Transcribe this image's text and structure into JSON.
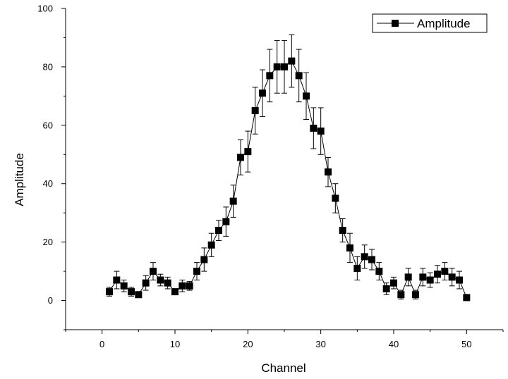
{
  "chart_data": {
    "type": "scatter",
    "title": "",
    "xlabel": "Channel",
    "ylabel": "Amplitude",
    "xlim": [
      -5,
      55
    ],
    "ylim": [
      -10,
      100
    ],
    "x_ticks": [
      0,
      10,
      20,
      30,
      40,
      50
    ],
    "y_ticks": [
      0,
      20,
      40,
      60,
      80,
      100
    ],
    "grid": false,
    "legend_position": "top-right",
    "series": [
      {
        "name": "Amplitude",
        "color": "#000000",
        "marker": "square",
        "line": "solid",
        "x": [
          1,
          2,
          3,
          4,
          5,
          6,
          7,
          8,
          9,
          10,
          11,
          12,
          13,
          14,
          15,
          16,
          17,
          18,
          19,
          20,
          21,
          22,
          23,
          24,
          25,
          26,
          27,
          28,
          29,
          30,
          31,
          32,
          33,
          34,
          35,
          36,
          37,
          38,
          39,
          40,
          41,
          42,
          43,
          44,
          45,
          46,
          47,
          48,
          49,
          50
        ],
        "y": [
          3,
          7,
          5,
          3,
          2,
          6,
          10,
          7,
          6,
          3,
          5,
          5,
          10,
          14,
          19,
          24,
          27,
          34,
          49,
          51,
          65,
          71,
          77,
          80,
          80,
          82,
          77,
          70,
          59,
          58,
          44,
          35,
          24,
          18,
          11,
          15,
          14,
          10,
          4,
          6,
          2,
          8,
          2,
          8,
          7,
          9,
          10,
          8,
          7,
          1
        ],
        "error": [
          1.5,
          3,
          2,
          1.5,
          1,
          2.5,
          3,
          2,
          2,
          1,
          2,
          1.5,
          3,
          4,
          4,
          3.5,
          5,
          5.5,
          6,
          7,
          8,
          8,
          9,
          9,
          9,
          9,
          9,
          8,
          7,
          8,
          5,
          5,
          4,
          5,
          4,
          4,
          3.5,
          3,
          2,
          2,
          1.5,
          3,
          1.5,
          3,
          2.5,
          3,
          3,
          3,
          3,
          0.5
        ]
      }
    ]
  }
}
